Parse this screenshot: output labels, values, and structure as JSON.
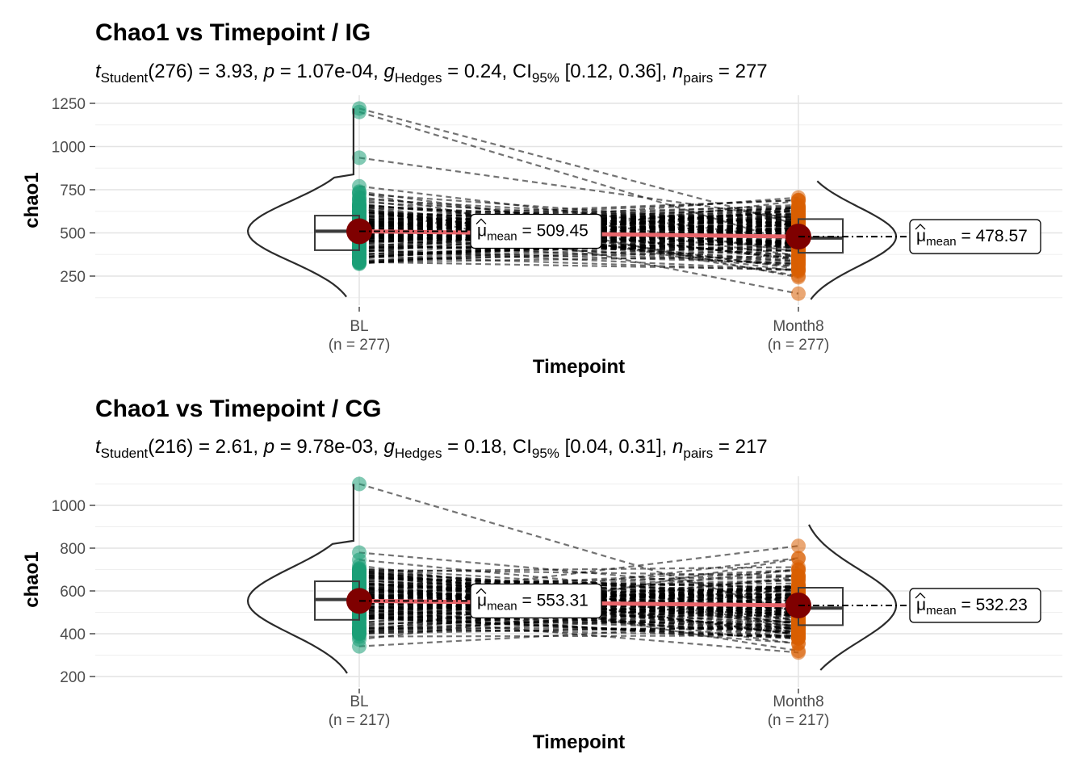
{
  "chart_data": [
    {
      "type": "violin",
      "title": "Chao1 vs Timepoint / IG",
      "subtitle": {
        "stat_symbol": "t",
        "stat_sub": "Student",
        "df": "(276) = 3.93,",
        "p_symbol": "p",
        "p_text": " = 1.07e-04,",
        "g_symbol": "g",
        "g_sub": "Hedges",
        "g_text": " = 0.24, CI",
        "ci_sub": "95%",
        "ci_text": " [0.12, 0.36],",
        "n_symbol": "n",
        "n_sub": "pairs",
        "n_text": " = 277"
      },
      "xlabel": "Timepoint",
      "ylabel": "chao1",
      "categories": [
        "BL",
        "Month8"
      ],
      "category_n": [
        "(n = 277)",
        "(n = 277)"
      ],
      "ylim": [
        100,
        1300
      ],
      "yticks": [
        250,
        500,
        750,
        1000,
        1250
      ],
      "ytick_labels": [
        "250",
        "500",
        "750",
        "1000",
        "1250"
      ],
      "means": [
        509.45,
        478.57
      ],
      "mean_labels": [
        "509.45",
        "478.57"
      ],
      "mean_label_prefix": "μ",
      "mean_label_sub": "mean",
      "n_pairs": 277,
      "colors": {
        "BL": "#1b9e77",
        "Month8": "#d95f02",
        "mean": "#7f0000",
        "mean_line": "#e8656b"
      },
      "boxplots": [
        {
          "q1": 400,
          "median": 510,
          "q3": 600
        },
        {
          "q1": 385,
          "median": 470,
          "q3": 580
        }
      ],
      "ranges": [
        {
          "min": 130,
          "max": 1220,
          "bulk_max": 830
        },
        {
          "min": 115,
          "max": 800,
          "bulk_max": 800
        }
      ],
      "outliers_bl": [
        1220,
        1200,
        935
      ],
      "grid": true
    },
    {
      "type": "violin",
      "title": "Chao1  vs Timepoint / CG",
      "subtitle": {
        "stat_symbol": "t",
        "stat_sub": "Student",
        "df": "(216) = 2.61,",
        "p_symbol": "p",
        "p_text": " = 9.78e-03,",
        "g_symbol": "g",
        "g_sub": "Hedges",
        "g_text": " = 0.18, CI",
        "ci_sub": "95%",
        "ci_text": " [0.04, 0.31],",
        "n_symbol": "n",
        "n_sub": "pairs",
        "n_text": " = 217"
      },
      "xlabel": "Timepoint",
      "ylabel": "chao1",
      "categories": [
        "BL",
        "Month8"
      ],
      "category_n": [
        "(n = 217)",
        "(n = 217)"
      ],
      "ylim": [
        190,
        1150
      ],
      "yticks": [
        200,
        400,
        600,
        800,
        1000
      ],
      "ytick_labels": [
        "200",
        "400",
        "600",
        "800",
        "1000"
      ],
      "means": [
        553.31,
        532.23
      ],
      "mean_labels": [
        "553.31",
        "532.23"
      ],
      "mean_label_prefix": "μ",
      "mean_label_sub": "mean",
      "n_pairs": 217,
      "colors": {
        "BL": "#1b9e77",
        "Month8": "#d95f02",
        "mean": "#7f0000",
        "mean_line": "#e8656b"
      },
      "boxplots": [
        {
          "q1": 465,
          "median": 560,
          "q3": 645
        },
        {
          "q1": 440,
          "median": 520,
          "q3": 615
        }
      ],
      "ranges": [
        {
          "min": 215,
          "max": 1100,
          "bulk_max": 830
        },
        {
          "min": 230,
          "max": 910,
          "bulk_max": 910
        }
      ],
      "outliers_bl": [
        1100
      ],
      "grid": true
    }
  ]
}
